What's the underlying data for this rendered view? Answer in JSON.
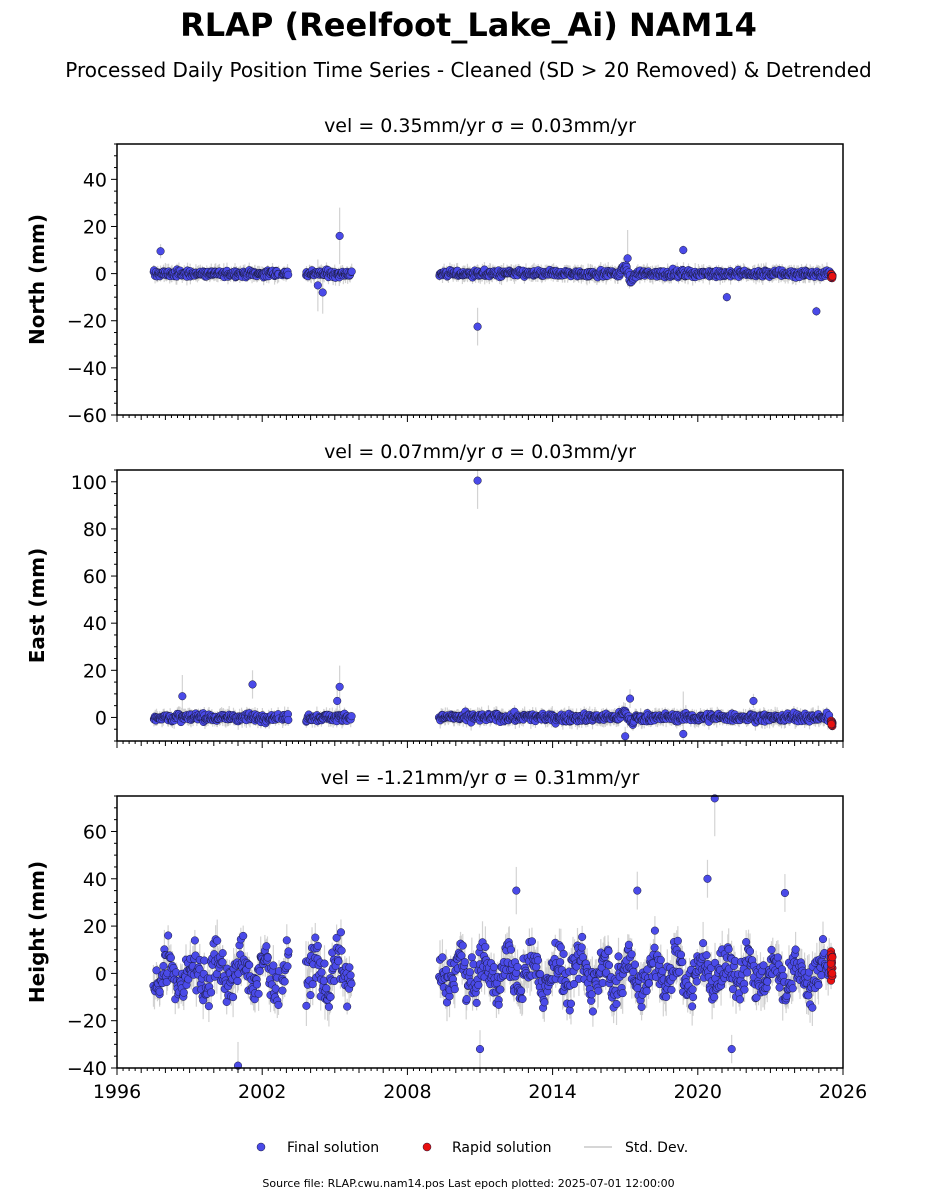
{
  "title": "RLAP (Reelfoot_Lake_Ai) NAM14",
  "subtitle": "Processed Daily Position Time Series - Cleaned (SD > 20 Removed) & Detrended",
  "source_note": "Source file: RLAP.cwu.nam14.pos  Last epoch plotted: 2025-07-01 12:00:00",
  "legend": {
    "final_label": "Final solution",
    "rapid_label": "Rapid solution",
    "std_label": "Std. Dev."
  },
  "colors": {
    "final": "#4a4ae8",
    "rapid": "#e81010",
    "std": "#c8c8c8"
  },
  "chart_data": [
    {
      "type": "scatter",
      "title": "vel = 0.35mm/yr   σ = 0.03mm/yr",
      "ylabel": "North (mm)",
      "xlim": [
        1996,
        2026
      ],
      "ylim": [
        -60,
        55
      ],
      "yticks": [
        -60,
        -40,
        -20,
        0,
        20,
        40
      ],
      "xticks": [
        1996,
        2002,
        2008,
        2014,
        2020,
        2026
      ],
      "xtick_labels": [
        "",
        "",
        "",
        "",
        "",
        ""
      ],
      "spread": 1.3,
      "err": 2.5,
      "outliers": [
        [
          1997.8,
          9.5,
          3
        ],
        [
          2005.2,
          16,
          12
        ],
        [
          2010.9,
          -22.5,
          8
        ],
        [
          2017.1,
          6.5,
          12
        ],
        [
          2019.4,
          10,
          2
        ],
        [
          2021.2,
          -10,
          2
        ],
        [
          2024.9,
          -16,
          2
        ],
        [
          2004.5,
          -8,
          9
        ],
        [
          2004.3,
          -5,
          11
        ]
      ]
    },
    {
      "type": "scatter",
      "title": "vel = 0.07mm/yr   σ = 0.03mm/yr",
      "ylabel": "East (mm)",
      "xlim": [
        1996,
        2026
      ],
      "ylim": [
        -10,
        105
      ],
      "yticks": [
        0,
        20,
        40,
        60,
        80,
        100
      ],
      "xticks": [
        1996,
        2002,
        2008,
        2014,
        2020,
        2026
      ],
      "xtick_labels": [
        "",
        "",
        "",
        "",
        "",
        ""
      ],
      "spread": 1.5,
      "err": 2.5,
      "outliers": [
        [
          2010.9,
          100.5,
          12
        ],
        [
          2001.6,
          14,
          6
        ],
        [
          2005.2,
          13,
          9
        ],
        [
          1998.7,
          9,
          9
        ],
        [
          2005.1,
          7,
          6
        ],
        [
          2022.3,
          7,
          3
        ],
        [
          2019.4,
          -7,
          18
        ],
        [
          2017.2,
          8,
          4
        ],
        [
          2017.0,
          -8,
          4
        ]
      ]
    },
    {
      "type": "scatter",
      "title": "vel = -1.21mm/yr   σ = 0.31mm/yr",
      "ylabel": "Height (mm)",
      "xlim": [
        1996,
        2026
      ],
      "ylim": [
        -40,
        75
      ],
      "yticks": [
        -40,
        -20,
        0,
        20,
        40,
        60
      ],
      "xticks": [
        1996,
        2002,
        2008,
        2014,
        2020,
        2026
      ],
      "xtick_labels": [
        "1996",
        "2002",
        "2008",
        "2014",
        "2020",
        "2026"
      ],
      "spread": 8,
      "err": 6,
      "outliers": [
        [
          2020.7,
          74,
          16
        ],
        [
          2020.4,
          40,
          8
        ],
        [
          2001.0,
          -39,
          10
        ],
        [
          2011.0,
          -32,
          8
        ],
        [
          2021.4,
          -32,
          6
        ],
        [
          2012.5,
          35,
          10
        ],
        [
          2017.5,
          35,
          8
        ],
        [
          2023.6,
          34,
          8
        ]
      ]
    }
  ],
  "segments": [
    [
      1997.5,
      2002.7
    ],
    [
      2002.8,
      2003.1
    ],
    [
      2003.8,
      2005.0
    ],
    [
      2005.0,
      2005.7
    ],
    [
      2009.3,
      2025.45
    ]
  ],
  "rapid_range": [
    2025.45,
    2025.7
  ]
}
